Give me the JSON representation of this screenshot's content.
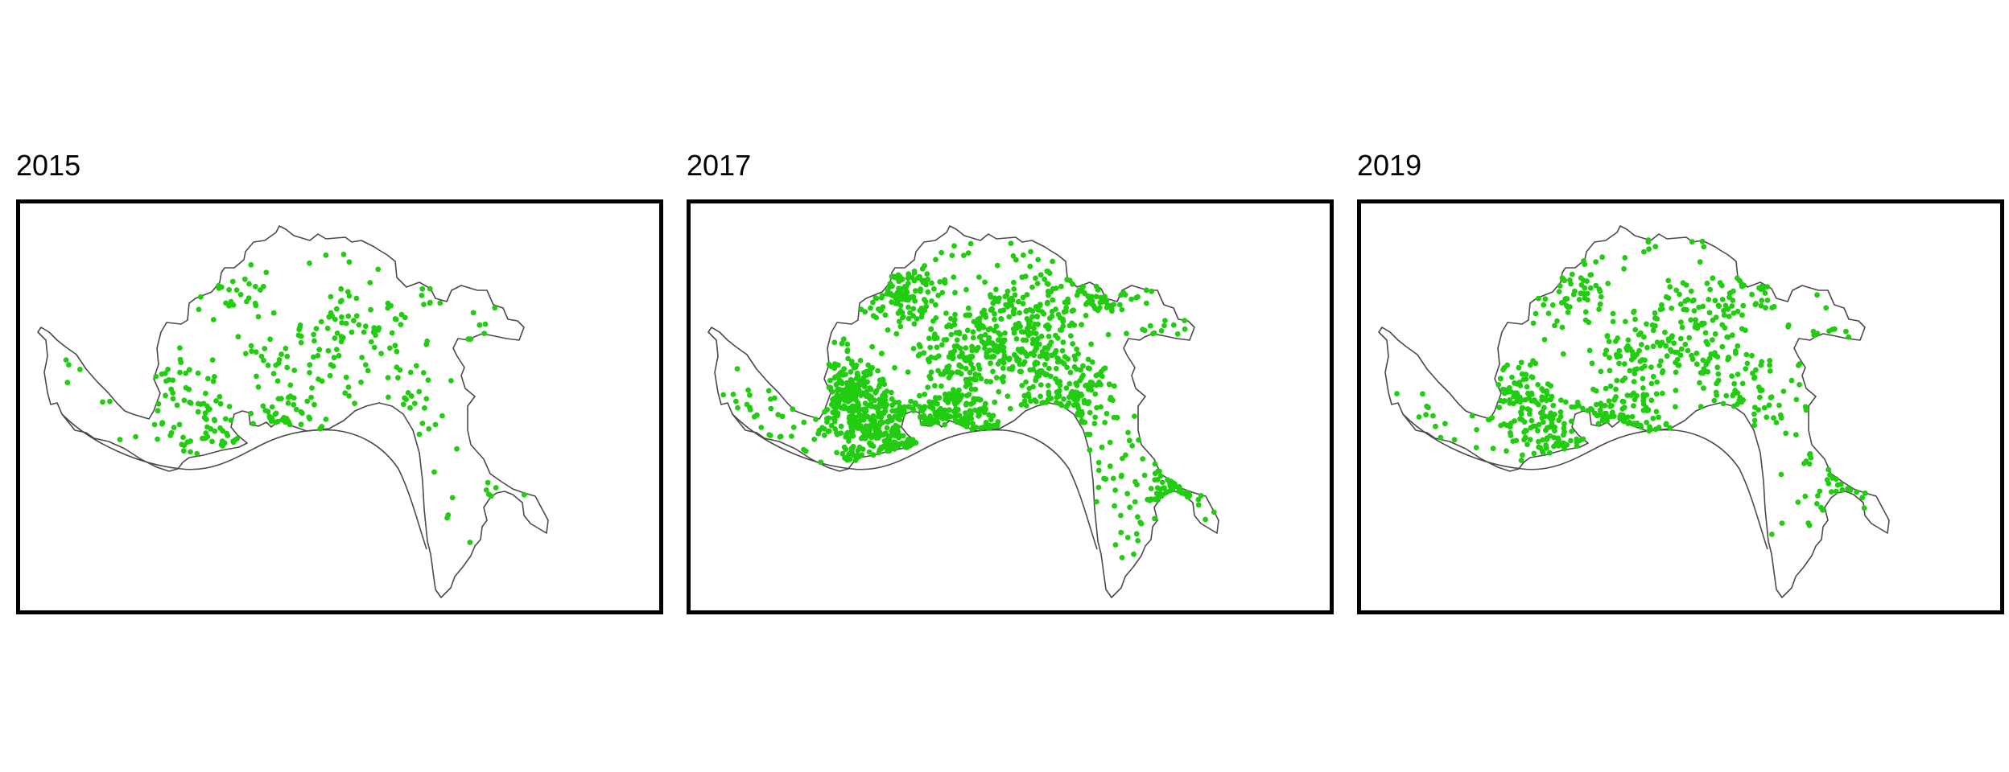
{
  "panels": [
    {
      "title": "2015",
      "density": "low"
    },
    {
      "title": "2017",
      "density": "high"
    },
    {
      "title": "2019",
      "density": "medium"
    }
  ],
  "colors": {
    "point": "#22cc11",
    "boundary": "#4a4a4a",
    "frame": "#000000",
    "background": "#ffffff"
  }
}
